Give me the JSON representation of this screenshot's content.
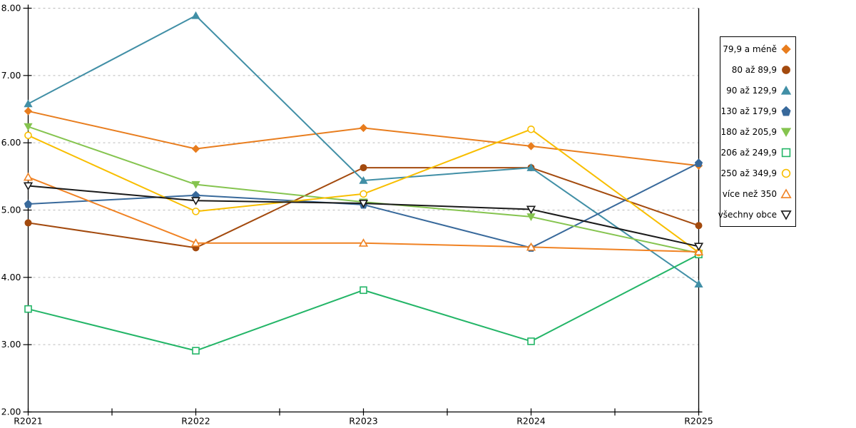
{
  "chart_data": {
    "type": "line",
    "title": "",
    "xlabel": "",
    "ylabel": "",
    "categories": [
      "R2021",
      "R2022",
      "R2023",
      "R2024",
      "R2025"
    ],
    "y_ticks": [
      "8.00",
      "7.00",
      "6.00",
      "5.00",
      "4.00",
      "3.00",
      "2.00"
    ],
    "ylim": [
      2.0,
      8.0
    ],
    "grid": "horizontal-dashed",
    "gridline_color": "#BBBBBB",
    "axis_color": "#000000",
    "legend_position": "right",
    "series": [
      {
        "name": "79,9 a méně",
        "color": "#E87D1E",
        "marker": "diamond",
        "filled": true,
        "values": [
          6.47,
          5.91,
          6.22,
          5.95,
          5.66
        ]
      },
      {
        "name": "80 až 89,9",
        "color": "#A34A0E",
        "marker": "circle",
        "filled": true,
        "values": [
          4.81,
          4.44,
          5.63,
          5.63,
          4.77
        ]
      },
      {
        "name": "90 až 129,9",
        "color": "#418FA6",
        "marker": "triangle-up",
        "filled": true,
        "values": [
          6.58,
          7.89,
          5.44,
          5.63,
          3.9
        ]
      },
      {
        "name": "130 až 179,9",
        "color": "#38699B",
        "marker": "pentagon",
        "filled": true,
        "values": [
          5.09,
          5.22,
          5.08,
          4.44,
          5.7
        ]
      },
      {
        "name": "180 až 205,9",
        "color": "#85C44F",
        "marker": "triangle-down",
        "filled": true,
        "values": [
          6.24,
          5.38,
          5.12,
          4.9,
          4.36
        ]
      },
      {
        "name": "206 až 249,9",
        "color": "#23B567",
        "marker": "square",
        "filled": false,
        "values": [
          3.53,
          2.91,
          3.81,
          3.05,
          4.34
        ]
      },
      {
        "name": "250 až 349,9",
        "color": "#F8BE00",
        "marker": "circle",
        "filled": false,
        "values": [
          6.11,
          4.98,
          5.24,
          6.2,
          4.37
        ]
      },
      {
        "name": "více než 350",
        "color": "#F08223",
        "marker": "triangle-up",
        "filled": false,
        "values": [
          5.49,
          4.51,
          4.51,
          4.45,
          4.38
        ]
      },
      {
        "name": "všechny obce",
        "color": "#1A1A1A",
        "marker": "triangle-down",
        "filled": false,
        "values": [
          5.36,
          5.14,
          5.1,
          5.01,
          4.46
        ]
      }
    ]
  }
}
